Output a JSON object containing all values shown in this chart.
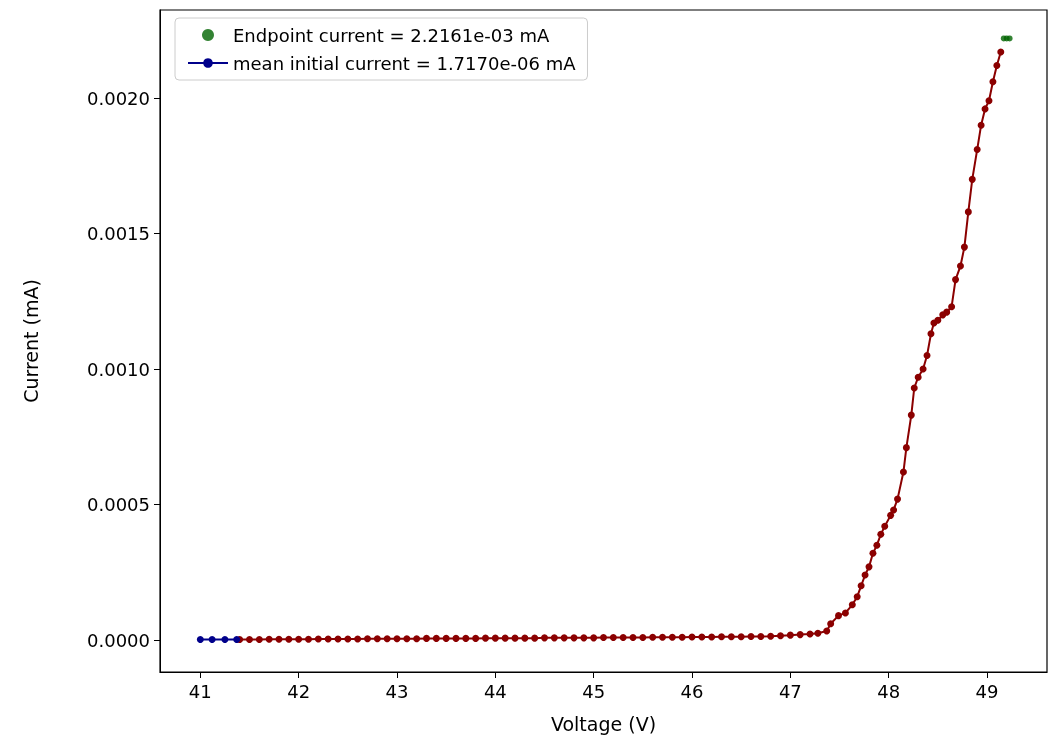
{
  "chart_data": {
    "type": "line",
    "xlabel": "Voltage (V)",
    "ylabel": "Current (mA)",
    "xlim": [
      40.59,
      49.61
    ],
    "xticks": [
      41,
      42,
      43,
      44,
      45,
      46,
      47,
      48,
      49
    ],
    "ylim": [
      -0.000118,
      0.002325
    ],
    "yticks": [
      {
        "value": 0,
        "label": "0.0000"
      },
      {
        "value": 0.0005,
        "label": "0.0005"
      },
      {
        "value": 0.001,
        "label": "0.0010"
      },
      {
        "value": 0.0015,
        "label": "0.0015"
      },
      {
        "value": 0.002,
        "label": "0.0020"
      }
    ],
    "grid": false,
    "legend": "top left",
    "marker": "circle",
    "line_style": "solid",
    "series": [
      {
        "type": "line",
        "color": "#8b0000",
        "x": [
          41.4,
          41.5,
          41.6,
          41.7,
          41.8,
          41.9,
          42.0,
          42.1,
          42.2,
          42.3,
          42.4,
          42.5,
          42.6,
          42.7,
          42.8,
          42.9,
          43.0,
          43.1,
          43.2,
          43.3,
          43.4,
          43.5,
          43.6,
          43.7,
          43.8,
          43.9,
          44.0,
          44.1,
          44.2,
          44.3,
          44.4,
          44.5,
          44.6,
          44.7,
          44.8,
          44.9,
          45.0,
          45.1,
          45.2,
          45.3,
          45.4,
          45.5,
          45.6,
          45.7,
          45.8,
          45.9,
          46.0,
          46.1,
          46.2,
          46.3,
          46.4,
          46.5,
          46.6,
          46.7,
          46.8,
          46.9,
          47.0,
          47.1,
          47.2,
          47.28,
          47.37,
          47.41,
          47.49,
          47.56,
          47.63,
          47.68,
          47.72,
          47.76,
          47.8,
          47.84,
          47.88,
          47.92,
          47.96,
          48.02,
          48.05,
          48.09,
          48.15,
          48.18,
          48.23,
          48.26,
          48.3,
          48.35,
          48.39,
          48.43,
          48.46,
          48.5,
          48.55,
          48.59,
          48.64,
          48.68,
          48.73,
          48.77,
          48.81,
          48.85,
          48.9,
          48.94,
          48.98,
          49.02,
          49.06,
          49.1,
          49.14
        ],
        "values": [
          2e-06,
          2e-06,
          2e-06,
          3e-06,
          3e-06,
          3e-06,
          3e-06,
          3e-06,
          4e-06,
          4e-06,
          4e-06,
          4e-06,
          4e-06,
          5e-06,
          5e-06,
          5e-06,
          5e-06,
          5e-06,
          5e-06,
          6e-06,
          6e-06,
          6e-06,
          6e-06,
          6e-06,
          6e-06,
          7e-06,
          7e-06,
          7e-06,
          7e-06,
          7e-06,
          7e-06,
          8e-06,
          8e-06,
          8e-06,
          8e-06,
          8e-06,
          8e-06,
          9e-06,
          9e-06,
          9e-06,
          9e-06,
          9e-06,
          1e-05,
          1e-05,
          1e-05,
          1e-05,
          1.1e-05,
          1.1e-05,
          1.1e-05,
          1.2e-05,
          1.2e-05,
          1.2e-05,
          1.3e-05,
          1.3e-05,
          1.4e-05,
          1.6e-05,
          1.8e-05,
          2e-05,
          2.2e-05,
          2.5e-05,
          3.3e-05,
          6e-05,
          9e-05,
          0.0001,
          0.00013,
          0.00016,
          0.0002,
          0.00024,
          0.00027,
          0.00032,
          0.00035,
          0.00039,
          0.00042,
          0.00046,
          0.00048,
          0.00052,
          0.00062,
          0.00071,
          0.00083,
          0.00093,
          0.00097,
          0.001,
          0.00105,
          0.00113,
          0.00117,
          0.00118,
          0.0012,
          0.00121,
          0.00123,
          0.00133,
          0.00138,
          0.00145,
          0.00158,
          0.0017,
          0.00181,
          0.0019,
          0.00196,
          0.00199,
          0.00206,
          0.00212,
          0.00217
        ]
      },
      {
        "type": "scatter",
        "name": "Endpoint current = 2.2161e-03 mA",
        "color": "#006400",
        "x": [
          49.17,
          49.2,
          49.23
        ],
        "values": [
          0.00222,
          0.00222,
          0.00222
        ]
      },
      {
        "type": "line",
        "name": "mean initial current = 1.7170e-06 mA",
        "color": "#00008b",
        "x": [
          41.0,
          41.12,
          41.25,
          41.37
        ],
        "values": [
          1.7e-06,
          1.7e-06,
          1.7e-06,
          1.7e-06
        ]
      }
    ]
  }
}
